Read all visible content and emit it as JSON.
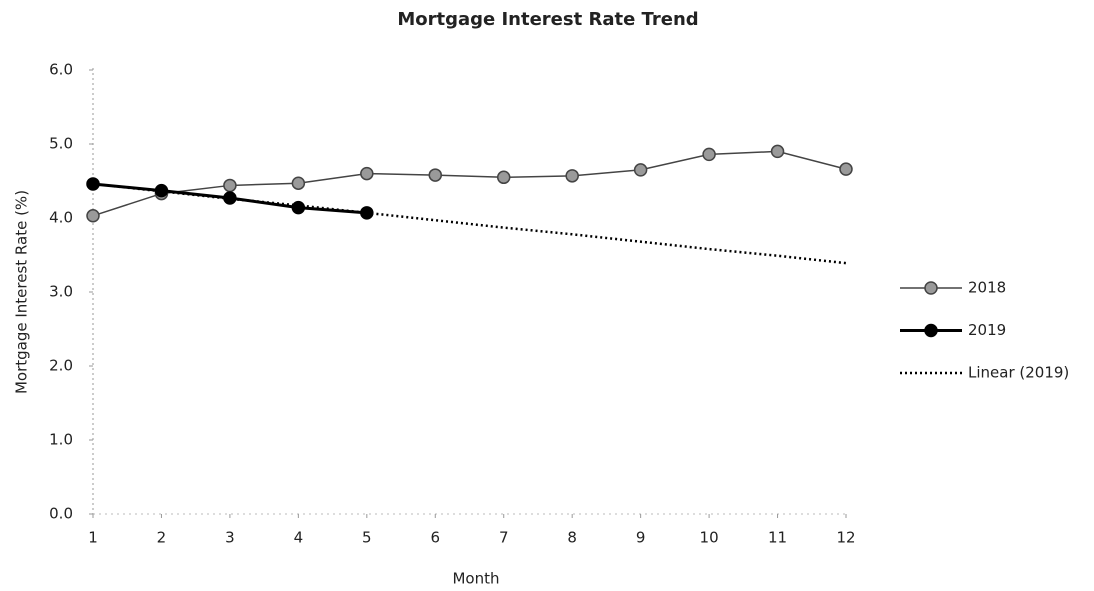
{
  "chart_data": {
    "type": "line",
    "title": "Mortgage Interest Rate Trend",
    "x_label": "Month",
    "y_label": "Mortgage Interest Rate (%)",
    "x": [
      1,
      2,
      3,
      4,
      5,
      6,
      7,
      8,
      9,
      10,
      11,
      12
    ],
    "xlim": [
      1,
      12
    ],
    "xticks": [
      1,
      2,
      3,
      4,
      5,
      6,
      7,
      8,
      9,
      10,
      11,
      12
    ],
    "ylim": [
      0,
      6
    ],
    "yticks": [
      {
        "value": 0,
        "label": "0.0"
      },
      {
        "value": 1,
        "label": "1.0"
      },
      {
        "value": 2,
        "label": "2.0"
      },
      {
        "value": 3,
        "label": "3.0"
      },
      {
        "value": 4,
        "label": "4.0"
      },
      {
        "value": 5,
        "label": "5.0"
      },
      {
        "value": 6,
        "label": "6.0"
      }
    ],
    "grid": false,
    "legend": "right",
    "series": [
      {
        "name": "2018",
        "color": "#444444",
        "marker_fill": "#9a9a9a",
        "width": 1.5,
        "dash": "solid",
        "marker": true,
        "values": [
          4.03,
          4.33,
          4.44,
          4.47,
          4.6,
          4.58,
          4.55,
          4.57,
          4.65,
          4.86,
          4.9,
          4.66
        ]
      },
      {
        "name": "2019",
        "color": "#000000",
        "marker_fill": "#000000",
        "width": 3,
        "dash": "solid",
        "marker": true,
        "values": [
          4.46,
          4.37,
          4.27,
          4.14,
          4.07,
          null,
          null,
          null,
          null,
          null,
          null,
          null
        ]
      },
      {
        "name": "Linear (2019)",
        "color": "#000000",
        "width": 2.5,
        "dash": "dotted",
        "marker": false,
        "values": [
          4.46,
          4.36,
          4.26,
          4.17,
          4.07,
          3.97,
          3.87,
          3.78,
          3.68,
          3.58,
          3.49,
          3.39
        ]
      }
    ]
  }
}
